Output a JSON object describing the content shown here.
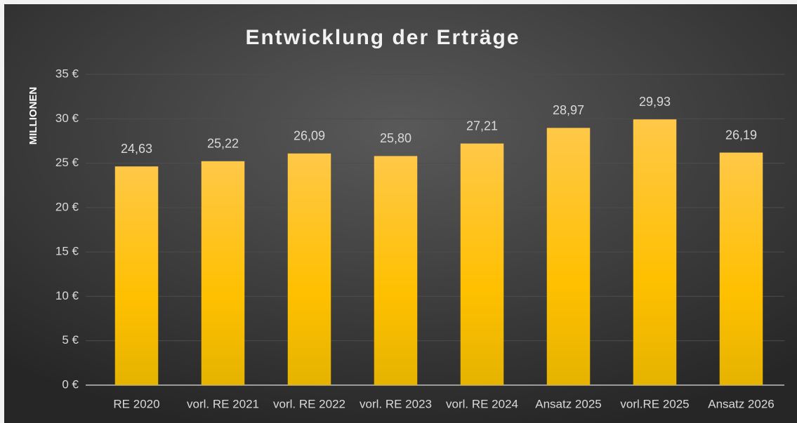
{
  "chart_data": {
    "type": "bar",
    "title": "Entwicklung der Erträge",
    "y_axis_label": "MILLIONEN",
    "categories": [
      "RE 2020",
      "vorl. RE 2021",
      "vorl. RE 2022",
      "vorl. RE 2023",
      "vorl. RE 2024",
      "Ansatz 2025",
      "vorl.RE 2025",
      "Ansatz 2026"
    ],
    "values": [
      24.63,
      25.22,
      26.09,
      25.8,
      27.21,
      28.97,
      29.93,
      26.19
    ],
    "value_labels": [
      "24,63",
      "25,22",
      "26,09",
      "25,80",
      "27,21",
      "28,97",
      "29,93",
      "26,19"
    ],
    "color": "#ffc000",
    "ylim": [
      0,
      35
    ],
    "yticks": [
      {
        "value": 0,
        "label": "0 €"
      },
      {
        "value": 5,
        "label": "5 €"
      },
      {
        "value": 10,
        "label": "10 €"
      },
      {
        "value": 15,
        "label": "15 €"
      },
      {
        "value": 20,
        "label": "20 €"
      },
      {
        "value": 25,
        "label": "25 €"
      },
      {
        "value": 30,
        "label": "30 €"
      },
      {
        "value": 35,
        "label": "35 €"
      }
    ],
    "grid": true
  }
}
